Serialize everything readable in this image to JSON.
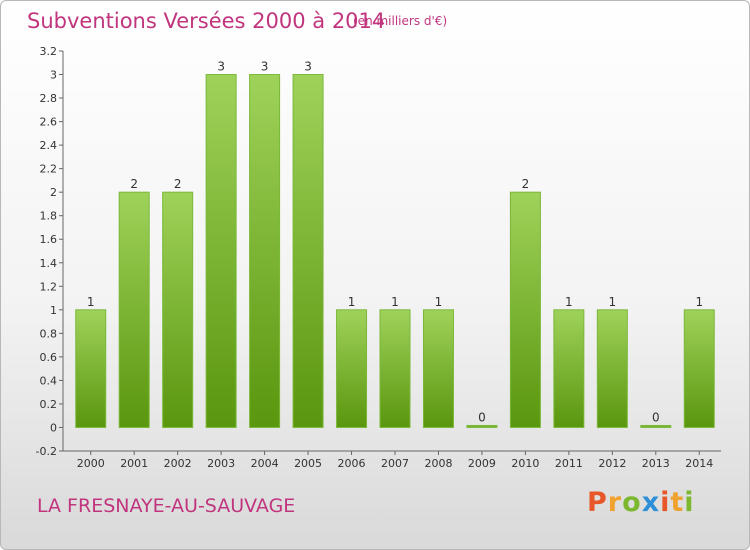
{
  "header": {
    "title": "Subventions Versées 2000 à 2014",
    "subtitle": "(en milliers d'€)"
  },
  "footer": {
    "commune": "LA FRESNAYE-AU-SAUVAGE",
    "logo_letters": [
      "P",
      "r",
      "o",
      "x",
      "i",
      "t",
      "i"
    ],
    "logo_colors": [
      "#e8572a",
      "#f0a22e",
      "#7bb82f",
      "#2e8fd8",
      "#e8572a",
      "#f0a22e",
      "#7bb82f"
    ]
  },
  "colors": {
    "title": "#c0357e",
    "bar_top": "#9fd25a",
    "bar_bottom": "#5a960e",
    "bar_border": "#7ab83a"
  },
  "chart_data": {
    "type": "bar",
    "title": "Subventions Versées 2000 à 2014",
    "xlabel": "",
    "ylabel": "",
    "categories": [
      "2000",
      "2001",
      "2002",
      "2003",
      "2004",
      "2005",
      "2006",
      "2007",
      "2008",
      "2009",
      "2010",
      "2011",
      "2012",
      "2013",
      "2014"
    ],
    "values": [
      1,
      2,
      2,
      3,
      3,
      3,
      1,
      1,
      1,
      0,
      2,
      1,
      1,
      0,
      1
    ],
    "data_labels": [
      "1",
      "2",
      "2",
      "3",
      "3",
      "3",
      "1",
      "1",
      "1",
      "0",
      "2",
      "1",
      "1",
      "0",
      "1"
    ],
    "ylim": [
      -0.2,
      3.2
    ],
    "yticks": [
      -0.2,
      0,
      0.2,
      0.4,
      0.6,
      0.8,
      1,
      1.2,
      1.4,
      1.6,
      1.8,
      2,
      2.2,
      2.4,
      2.6,
      2.8,
      3,
      3.2
    ],
    "ytick_labels": [
      "-0.2",
      "0",
      "0.2",
      "0.4",
      "0.6",
      "0.8",
      "1",
      "1.2",
      "1.4",
      "1.6",
      "1.8",
      "2",
      "2.2",
      "2.4",
      "2.6",
      "2.8",
      "3",
      "3.2"
    ],
    "grid": false,
    "legend": "none"
  }
}
